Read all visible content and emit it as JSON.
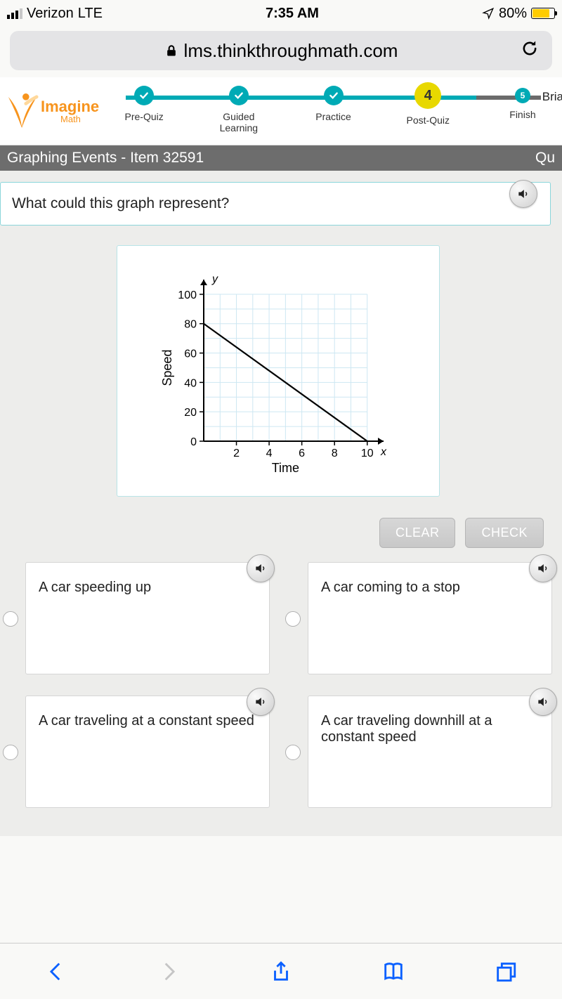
{
  "status_bar": {
    "carrier": "Verizon",
    "network": "LTE",
    "time": "7:35 AM",
    "battery_percent": "80%",
    "battery_fill_color": "#ffcc00",
    "battery_level": 80
  },
  "url_bar": {
    "lock_icon": "lock",
    "domain": "lms.thinkthroughmath.com"
  },
  "header": {
    "logo_line1": "Imagine",
    "logo_line2": "Math",
    "logo_color": "#f7941d",
    "user_partial": "Bria",
    "progress": {
      "active_color": "#00aab5",
      "inactive_color": "#6b6b6b",
      "current_color": "#e8d800",
      "steps": [
        {
          "label": "Pre-Quiz",
          "state": "done"
        },
        {
          "label": "Guided Learning",
          "state": "done"
        },
        {
          "label": "Practice",
          "state": "done"
        },
        {
          "label": "Post-Quiz",
          "state": "current",
          "number": "4"
        },
        {
          "label": "Finish",
          "state": "upcoming",
          "number": "5"
        }
      ]
    }
  },
  "title_bar": {
    "left": "Graphing Events - Item 32591",
    "right_partial": "Qu"
  },
  "question": {
    "text": "What could this graph represent?"
  },
  "graph": {
    "type": "line",
    "xlabel": "Time",
    "ylabel": "Speed",
    "x_axis_letter": "x",
    "y_axis_letter": "y",
    "xticks": [
      2,
      4,
      6,
      8,
      10
    ],
    "yticks": [
      0,
      20,
      40,
      60,
      80,
      100
    ],
    "xlim": [
      0,
      11
    ],
    "ylim": [
      0,
      110
    ],
    "grid_color": "#cde7f2",
    "axis_color": "#000000",
    "line_color": "#000000",
    "line_width": 2.2,
    "data": {
      "x": [
        0,
        10
      ],
      "y": [
        80,
        0
      ]
    },
    "background_color": "#ffffff",
    "tick_fontsize": 16,
    "label_fontsize": 18
  },
  "buttons": {
    "clear": "CLEAR",
    "check": "CHECK",
    "bg": "#d0d0d0",
    "text_color": "#ffffff"
  },
  "answers": [
    {
      "text": "A car speeding up"
    },
    {
      "text": "A car coming to a stop"
    },
    {
      "text": "A car traveling at a constant speed"
    },
    {
      "text": "A car traveling downhill at a constant speed"
    }
  ],
  "icons": {
    "speaker": "speaker-icon",
    "refresh": "refresh-icon",
    "lock": "lock-icon",
    "back": "chevron-left-icon",
    "forward": "chevron-right-icon",
    "share": "share-icon",
    "bookmarks": "book-icon",
    "tabs": "tabs-icon",
    "location_arrow": "location-arrow-icon",
    "checkmark": "checkmark-icon"
  },
  "colors": {
    "page_bg": "#ededeb",
    "card_border": "#8ad5da",
    "safari_blue": "#0a60ff"
  }
}
